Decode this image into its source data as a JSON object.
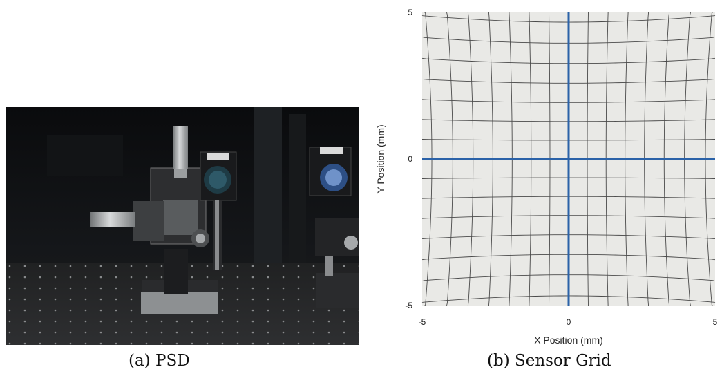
{
  "figure": {
    "caption_a": "(a) PSD",
    "caption_b": "(b) Sensor Grid"
  },
  "chart_data": {
    "type": "grid",
    "xlabel": "X Position (mm)",
    "ylabel": "Y Position (mm)",
    "xlim": [
      -5,
      5
    ],
    "ylim": [
      -5,
      5
    ],
    "x_ticks": [
      "-5",
      "0",
      "5"
    ],
    "y_ticks": [
      "-5",
      "0",
      "5"
    ],
    "grid_lines_per_axis": 15,
    "distortion": "pincushion",
    "axis_line_color": "#2b62a8",
    "grid_color": "#4a4a4a",
    "background_color": "#e9e9e6"
  }
}
